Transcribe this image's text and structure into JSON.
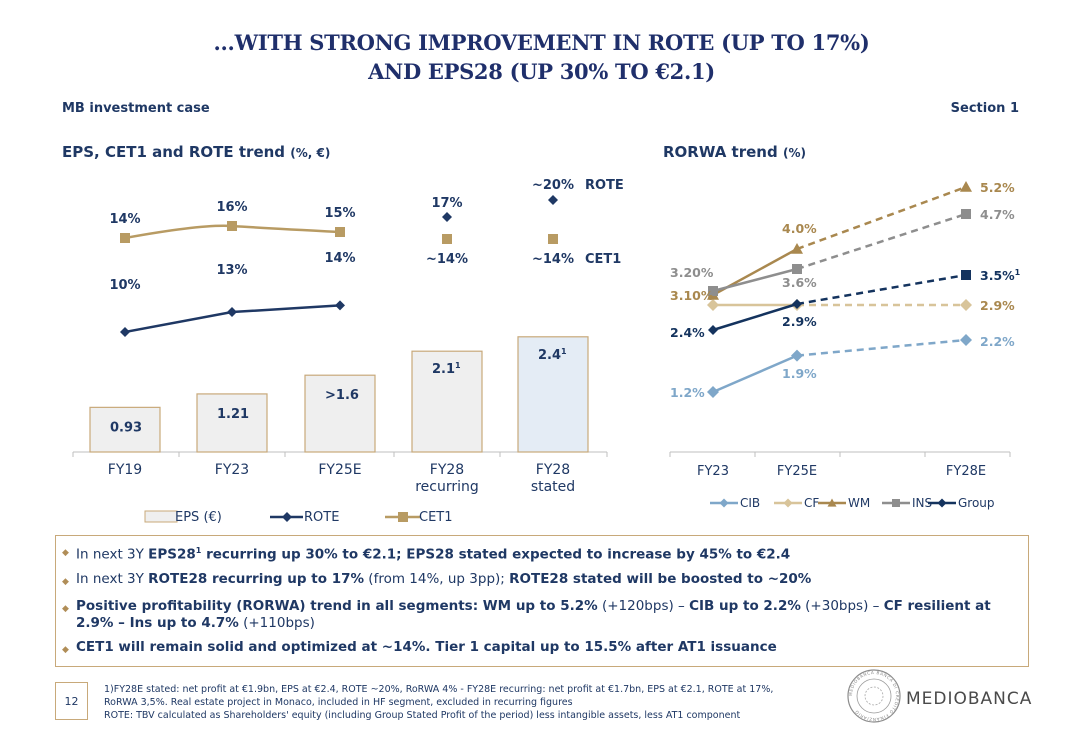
{
  "title": {
    "line1": "...WITH STRONG IMPROVEMENT IN ROTE (UP TO 17%)",
    "line2": "AND EPS28 (UP 30% TO €2.1)"
  },
  "header": {
    "left": "MB investment case",
    "right": "Section 1"
  },
  "colors": {
    "navy": "#1f3864",
    "gold": "#b89b63",
    "eps_fill": "#efefef",
    "eps_fill_stated": "#e4ecf5",
    "cib": "#7fa7c9",
    "cf": "#d8c49a",
    "wm": "#a9884f",
    "ins": "#8e8e8e",
    "group": "#14335e"
  },
  "chart_data": [
    {
      "type": "bar",
      "title": "EPS, CET1 and ROTE trend",
      "title_unit": "(%, €)",
      "categories": [
        "FY19",
        "FY23",
        "FY25E",
        "FY28\nrecurring",
        "FY28\nstated"
      ],
      "series": [
        {
          "name": "EPS (€)",
          "kind": "bar",
          "values": [
            0.93,
            1.21,
            1.6,
            2.1,
            2.4
          ],
          "labels": [
            "0.93",
            "1.21",
            ">1.6",
            "2.1",
            "2.4"
          ],
          "label_sup": [
            "",
            "",
            "",
            "1",
            "1"
          ]
        },
        {
          "name": "ROTE",
          "kind": "line",
          "values": [
            10,
            13,
            14,
            17,
            20
          ],
          "labels": [
            "10%",
            "13%",
            "14%",
            "17%",
            "~20%"
          ]
        },
        {
          "name": "CET1",
          "kind": "line",
          "values": [
            14,
            16,
            15,
            14,
            14
          ],
          "labels": [
            "14%",
            "16%",
            "15%",
            "~14%",
            "~14%"
          ]
        }
      ],
      "series_tags": {
        "rote": "ROTE",
        "cet1": "CET1"
      },
      "legend": [
        "EPS (€)",
        "ROTE",
        "CET1"
      ]
    },
    {
      "type": "line",
      "title": "RORWA trend",
      "title_unit": "(%)",
      "categories": [
        "FY23",
        "FY25E",
        "FY28E"
      ],
      "ylim": [
        0.8,
        5.6
      ],
      "series": [
        {
          "name": "CIB",
          "values": [
            1.2,
            1.9,
            2.2
          ],
          "labels": [
            "1.2%",
            "1.9%",
            "2.2%"
          ]
        },
        {
          "name": "CF",
          "values": [
            3.1,
            3.1,
            2.9
          ],
          "labels": [
            "3.10%",
            "",
            "2.9%"
          ]
        },
        {
          "name": "WM",
          "values": [
            3.2,
            4.0,
            5.2
          ],
          "labels": [
            "",
            "4.0%",
            "5.2%"
          ]
        },
        {
          "name": "INS",
          "values": [
            3.2,
            3.6,
            4.7
          ],
          "labels": [
            "3.20%",
            "3.6%",
            "4.7%"
          ]
        },
        {
          "name": "Group",
          "values": [
            2.4,
            2.9,
            3.5
          ],
          "labels": [
            "2.4%",
            "2.9%",
            "3.5%"
          ],
          "sup_last": "1"
        }
      ],
      "legend": [
        "CIB",
        "CF",
        "WM",
        "INS",
        "Group"
      ]
    }
  ],
  "bullets": [
    {
      "parts": [
        {
          "t": "In next 3Y ",
          "b": false
        },
        {
          "t": "EPS28",
          "b": true
        },
        {
          "t": "1",
          "b": true,
          "sup": true
        },
        {
          "t": " recurring up 30% to €2.1; EPS28 stated expected to increase by 45% to €2.4",
          "b": true
        }
      ]
    },
    {
      "parts": [
        {
          "t": "In next 3Y ",
          "b": false
        },
        {
          "t": "ROTE28 recurring up to 17%",
          "b": true
        },
        {
          "t": " (from 14%, up 3pp); ",
          "b": false
        },
        {
          "t": "ROTE28 stated will be boosted to ~20%",
          "b": true
        }
      ]
    },
    {
      "parts": [
        {
          "t": "Positive profitability (RORWA) trend in all segments: WM up to 5.2%",
          "b": true
        },
        {
          "t": " (+120bps) – ",
          "b": false
        },
        {
          "t": "CIB up to 2.2%",
          "b": true
        },
        {
          "t": " (+30bps) – ",
          "b": false
        },
        {
          "t": "CF resilient at 2.9% – Ins up to 4.7%",
          "b": true
        },
        {
          "t": " (+110bps)",
          "b": false
        }
      ]
    },
    {
      "parts": [
        {
          "t": "CET1 will remain solid and optimized at ~14%. Tier 1 capital up to 15.5% after AT1 issuance",
          "b": true
        }
      ]
    }
  ],
  "footer": {
    "page": "12",
    "note1": "1)FY28E stated: net profit at €1.9bn, EPS at €2.4, ROTE ~20%, RoRWA 4% - FY28E recurring: net profit at €1.7bn, EPS at €2.1, ROTE at 17%,",
    "note2": "RoRWA 3,5%. Real estate project in Monaco, included in HF segment, excluded in recurring figures",
    "note3": "ROTE: TBV calculated as Shareholders' equity (including Group Stated Profit of the period) less intangible assets, less AT1 component",
    "brand": "MEDIOBANCA",
    "seal_text": "MEDIOBANCA BANCA DI CREDITO FINANZIARIO"
  }
}
